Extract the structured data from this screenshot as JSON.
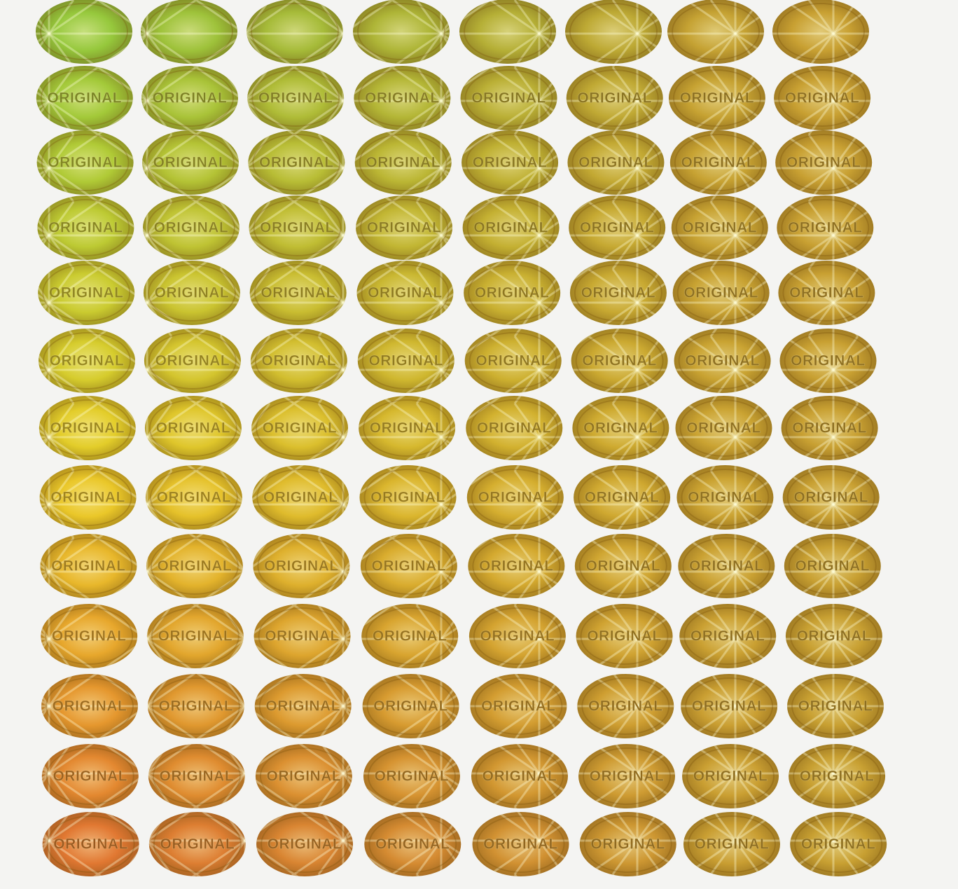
{
  "sticker_text": "ORIGINAL"
}
